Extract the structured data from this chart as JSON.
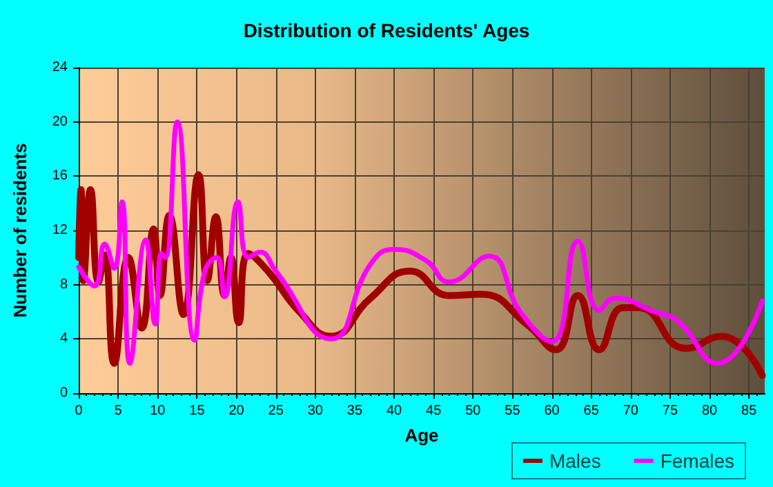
{
  "chart_data": {
    "type": "line",
    "title": "Distribution of Residents' Ages",
    "xlabel": "Age",
    "ylabel": "Number of residents",
    "xlim": [
      0,
      87
    ],
    "xticks": [
      0,
      5,
      10,
      15,
      20,
      25,
      30,
      35,
      40,
      45,
      50,
      55,
      60,
      65,
      70,
      75,
      80,
      85
    ],
    "ylim": [
      0,
      24
    ],
    "yticks": [
      0,
      4,
      8,
      12,
      16,
      20,
      24
    ],
    "series": [
      {
        "name": "Males",
        "color": "#a00000",
        "x": [
          0,
          0.3,
          0.6,
          1.5,
          2.5,
          3.3,
          4.5,
          6.3,
          8,
          9.5,
          10.3,
          11.5,
          13.3,
          15.2,
          16.3,
          17.4,
          18.5,
          19.3,
          20.3,
          21.5,
          24,
          28,
          32,
          37,
          42,
          47,
          51,
          57,
          60.5,
          63.3,
          66,
          69,
          71,
          77,
          81.5,
          86.7
        ],
        "values": [
          10,
          15,
          8.3,
          15,
          8.2,
          10.2,
          2.2,
          10,
          4.8,
          12.1,
          7.2,
          13.1,
          5.8,
          16.1,
          8.3,
          13,
          7.2,
          10,
          5.2,
          10.3,
          9,
          6,
          4.2,
          7,
          9,
          7.2,
          7.3,
          5,
          3.2,
          7.2,
          3.2,
          6.3,
          6.3,
          3.3,
          4.2,
          1.3
        ]
      },
      {
        "name": "Females",
        "color": "#ff00ff",
        "x": [
          0,
          2,
          3.3,
          4.5,
          5.5,
          6.5,
          8.5,
          9.7,
          10.5,
          11,
          12.5,
          14.7,
          16,
          17.5,
          18.5,
          20.2,
          21.5,
          23,
          25,
          32,
          37,
          40,
          44,
          47,
          52,
          56,
          60,
          63.3,
          66,
          68,
          73,
          76,
          81,
          86.7
        ],
        "values": [
          9.3,
          7.9,
          11,
          9.2,
          14.1,
          2.2,
          11.3,
          5.1,
          10.3,
          10,
          20,
          3.9,
          9,
          10,
          7.1,
          14.1,
          10,
          10.4,
          9,
          4,
          9.5,
          10.6,
          9.8,
          8.2,
          10.1,
          6,
          3.8,
          11.2,
          6.1,
          7,
          6,
          5.3,
          2.2,
          6.8
        ]
      }
    ],
    "grid": true,
    "legend": "bottom right",
    "marker": "none",
    "line_style": "solid"
  }
}
